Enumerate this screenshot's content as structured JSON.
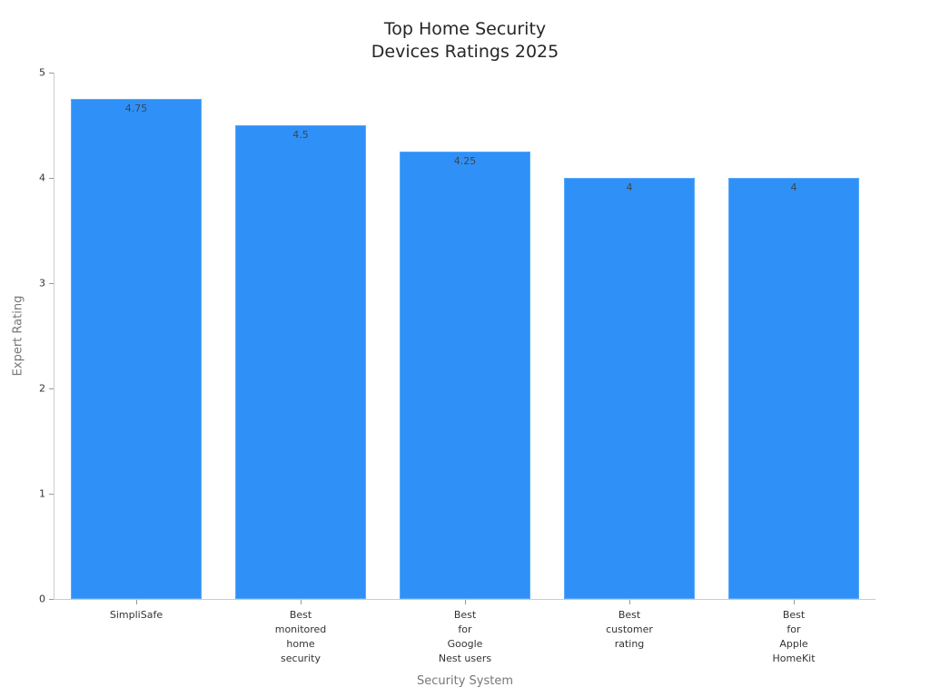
{
  "chart_data": {
    "type": "bar",
    "title": "Top Home Security\nDevices Ratings 2025",
    "xlabel": "Security System",
    "ylabel": "Expert Rating",
    "categories": [
      "SimpliSafe",
      "Best\nmonitored\nhome\nsecurity",
      "Best\nfor\nGoogle\nNest users",
      "Best\ncustomer\nrating",
      "Best\nfor\nApple\nHomeKit"
    ],
    "values": [
      4.75,
      4.5,
      4.25,
      4,
      4
    ],
    "value_labels": [
      "4.75",
      "4.5",
      "4.25",
      "4",
      "4"
    ],
    "ylim": [
      0,
      5
    ],
    "yticks": [
      "0",
      "1",
      "2",
      "3",
      "4",
      "5"
    ],
    "grid": false,
    "legend": null,
    "bar_color": "#2f91f8"
  }
}
